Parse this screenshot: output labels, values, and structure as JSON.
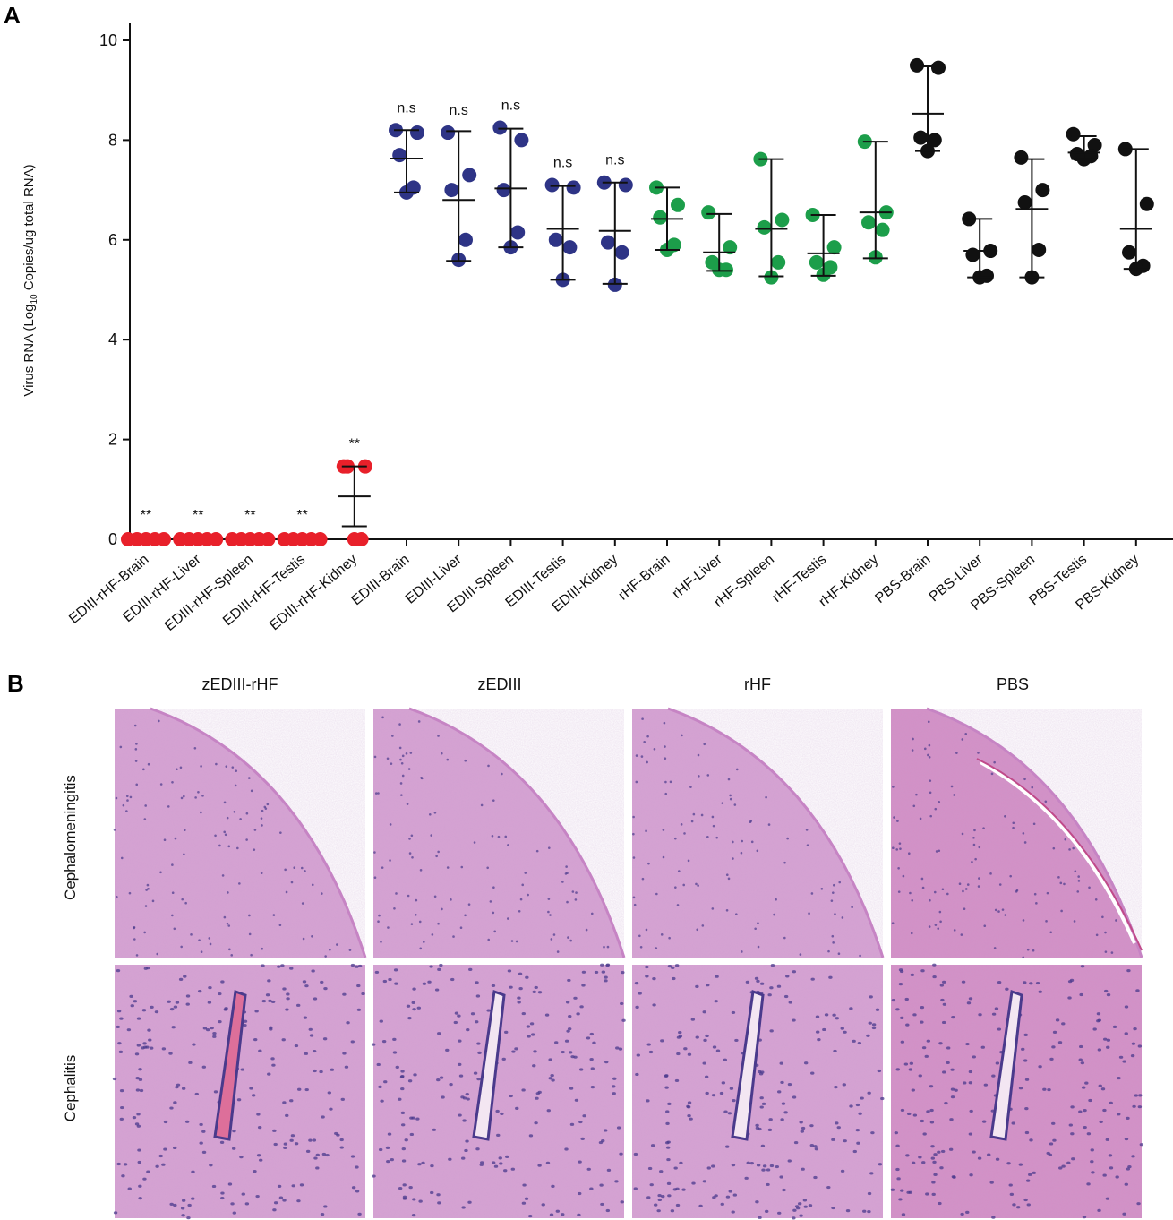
{
  "panel_a_letter": "A",
  "panel_b_letter": "B",
  "chart_data": {
    "type": "scatter",
    "title": "",
    "xlabel": "",
    "ylabel_pre": "Virus RNA (Log",
    "ylabel_sub": "10",
    "ylabel_post": " Copies/ug total RNA)",
    "ylim": [
      0,
      10.2
    ],
    "yticks": [
      0,
      2,
      4,
      6,
      8,
      10
    ],
    "ytick_labels": [
      "0",
      "2",
      "4",
      "6",
      "8",
      "10"
    ],
    "grid": false,
    "categories": [
      "EDIII-rHF-Brain",
      "EDIII-rHF-Liver",
      "EDIII-rHF-Spleen",
      "EDIII-rHF-Testis",
      "EDIII-rHF-Kidney",
      "EDIII-Brain",
      "EDIII-Liver",
      "EDIII-Spleen",
      "EDIII-Testis",
      "EDIII-Kidney",
      "rHF-Brain",
      "rHF-Liver",
      "rHF-Spleen",
      "rHF-Testis",
      "rHF-Kidney",
      "PBS-Brain",
      "PBS-Liver",
      "PBS-Spleen",
      "PBS-Testis",
      "PBS-Kidney"
    ],
    "colors": {
      "EDIII-rHF": "#e8202a",
      "EDIII": "#2e3486",
      "rHF": "#1c9e4a",
      "PBS": "#111111"
    },
    "series": [
      {
        "name": "EDIII-rHF",
        "categories": [
          0,
          1,
          2,
          3,
          4
        ],
        "points": [
          [
            0,
            0,
            0,
            0,
            0
          ],
          [
            0,
            0,
            0,
            0,
            0
          ],
          [
            0,
            0,
            0,
            0,
            0
          ],
          [
            0,
            0,
            0,
            0,
            0
          ],
          [
            1.46,
            1.46,
            1.46,
            0,
            0
          ]
        ],
        "mean": [
          0,
          0,
          0,
          0,
          0.86
        ],
        "upper": [
          0,
          0,
          0,
          0,
          1.46
        ],
        "lower": [
          0,
          0,
          0,
          0,
          0.26
        ],
        "annotations": [
          "**",
          "**",
          "**",
          "**",
          "**"
        ]
      },
      {
        "name": "EDIII",
        "categories": [
          5,
          6,
          7,
          8,
          9
        ],
        "points": [
          [
            8.2,
            8.15,
            7.7,
            7.05,
            6.95
          ],
          [
            8.15,
            7.3,
            7.0,
            6.0,
            5.6
          ],
          [
            8.25,
            8.0,
            7.0,
            6.15,
            5.85
          ],
          [
            7.1,
            7.05,
            6.0,
            5.85,
            5.2
          ],
          [
            7.15,
            7.1,
            5.95,
            5.75,
            5.1
          ]
        ],
        "mean": [
          7.63,
          6.8,
          7.03,
          6.22,
          6.18
        ],
        "upper": [
          8.2,
          8.18,
          8.23,
          7.08,
          7.15
        ],
        "lower": [
          6.95,
          5.58,
          5.85,
          5.2,
          5.12
        ],
        "annotations": [
          "n.s",
          "n.s",
          "n.s",
          "n.s",
          "n.s"
        ]
      },
      {
        "name": "rHF",
        "categories": [
          10,
          11,
          12,
          13,
          14
        ],
        "points": [
          [
            7.05,
            6.7,
            6.45,
            5.9,
            5.8
          ],
          [
            6.55,
            5.85,
            5.55,
            5.4,
            5.4
          ],
          [
            7.62,
            6.4,
            6.25,
            5.55,
            5.25
          ],
          [
            6.5,
            5.85,
            5.55,
            5.45,
            5.3
          ],
          [
            7.97,
            6.55,
            6.35,
            6.2,
            5.65
          ]
        ],
        "mean": [
          6.42,
          5.75,
          6.22,
          5.73,
          6.55
        ],
        "upper": [
          7.05,
          6.52,
          7.62,
          6.5,
          7.97
        ],
        "lower": [
          5.8,
          5.38,
          5.27,
          5.28,
          5.63
        ],
        "annotations": [
          "",
          "",
          "",
          "",
          ""
        ]
      },
      {
        "name": "PBS",
        "categories": [
          15,
          16,
          17,
          18,
          19
        ],
        "points": [
          [
            9.5,
            9.45,
            8.05,
            8.0,
            7.78
          ],
          [
            6.42,
            5.78,
            5.7,
            5.28,
            5.25
          ],
          [
            7.65,
            7.0,
            6.75,
            5.8,
            5.25
          ],
          [
            8.12,
            7.9,
            7.72,
            7.68,
            7.62
          ],
          [
            7.82,
            6.72,
            5.75,
            5.48,
            5.42
          ]
        ],
        "mean": [
          8.53,
          5.78,
          6.62,
          7.75,
          6.22
        ],
        "upper": [
          9.48,
          6.42,
          7.62,
          8.08,
          7.82
        ],
        "lower": [
          7.78,
          5.25,
          5.25,
          7.62,
          5.42
        ],
        "annotations": [
          "",
          "",
          "",
          "",
          ""
        ]
      }
    ]
  },
  "panel_b": {
    "columns": [
      "zEDIII-rHF",
      "zEDIII",
      "rHF",
      "PBS"
    ],
    "rows": [
      "Cephalomeningitis",
      "Cephalitis"
    ],
    "tissue_colors": {
      "base": "#d7a2d3",
      "dark": "#c684c4",
      "nuclei": "#4a3a8c",
      "vessel_blood": "#dd6f9a",
      "pbs_base": "#d48fc6"
    }
  }
}
